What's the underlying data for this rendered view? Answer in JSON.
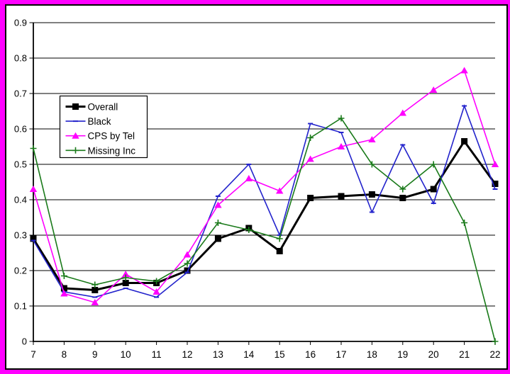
{
  "frame": {
    "border_color": "#ff00ff",
    "inner_border_color": "#000000",
    "plot_background": "#ffffff"
  },
  "chart_data": {
    "type": "line",
    "title": "",
    "xlabel": "",
    "ylabel": "",
    "grid": true,
    "gridline_color": "#000000",
    "legend_position": "upper-left-inside",
    "xlim": [
      7,
      22
    ],
    "ylim": [
      0,
      0.9
    ],
    "ytick_step": 0.1,
    "ytick_labels": [
      "0",
      "0.1",
      "0.2",
      "0.3",
      "0.4",
      "0.5",
      "0.6",
      "0.7",
      "0.8",
      "0.9"
    ],
    "xtick_labels": [
      "7",
      "8",
      "9",
      "10",
      "11",
      "12",
      "13",
      "14",
      "15",
      "16",
      "17",
      "18",
      "19",
      "20",
      "21",
      "22"
    ],
    "x": [
      7,
      8,
      9,
      10,
      11,
      12,
      13,
      14,
      15,
      16,
      17,
      18,
      19,
      20,
      21,
      22
    ],
    "series": [
      {
        "name": "Overall",
        "color": "#000000",
        "marker": "square",
        "line_width": 3,
        "values": [
          0.29,
          0.15,
          0.145,
          0.165,
          0.165,
          0.2,
          0.29,
          0.32,
          0.255,
          0.405,
          0.41,
          0.415,
          0.405,
          0.43,
          0.565,
          0.445
        ]
      },
      {
        "name": "Black",
        "color": "#2323cc",
        "marker": "dash",
        "line_width": 1.6,
        "values": [
          0.285,
          0.14,
          0.125,
          0.15,
          0.125,
          0.195,
          0.41,
          0.5,
          0.3,
          0.615,
          0.59,
          0.365,
          0.555,
          0.39,
          0.665,
          0.43
        ]
      },
      {
        "name": "CPS by Tel",
        "color": "#ff00ff",
        "marker": "triangle",
        "line_width": 1.6,
        "values": [
          0.43,
          0.135,
          0.11,
          0.19,
          0.14,
          0.245,
          0.385,
          0.46,
          0.425,
          0.515,
          0.55,
          0.57,
          0.645,
          0.71,
          0.765,
          0.5
        ]
      },
      {
        "name": "Missing Inc",
        "color": "#1a7a1a",
        "marker": "plus",
        "line_width": 1.6,
        "values": [
          0.545,
          0.185,
          0.16,
          0.18,
          0.17,
          0.22,
          0.335,
          0.315,
          0.29,
          0.575,
          0.63,
          0.5,
          0.43,
          0.5,
          0.335,
          0.0
        ]
      }
    ]
  }
}
